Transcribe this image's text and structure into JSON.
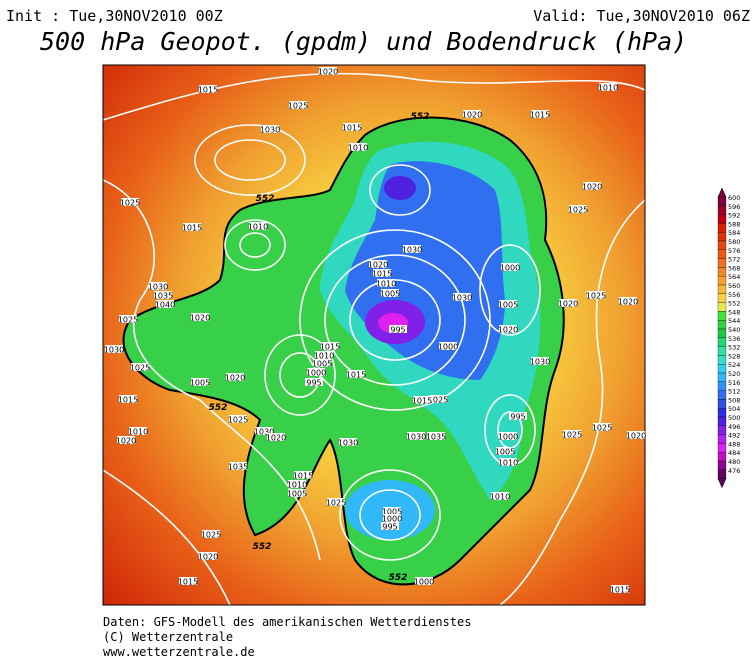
{
  "header": {
    "init": "Init : Tue,30NOV2010 00Z",
    "valid": "Valid: Tue,30NOV2010 06Z",
    "title": "500 hPa Geopot. (gpdm) und Bodendruck (hPa)"
  },
  "colorbar": {
    "values": [
      600,
      596,
      592,
      588,
      584,
      580,
      576,
      572,
      568,
      564,
      560,
      556,
      552,
      548,
      544,
      540,
      536,
      532,
      528,
      524,
      520,
      516,
      512,
      508,
      504,
      500,
      496,
      492,
      488,
      484,
      480,
      476
    ],
    "colors": [
      "#800040",
      "#a00028",
      "#c00010",
      "#d82000",
      "#e03000",
      "#e84810",
      "#f05818",
      "#f07020",
      "#f08828",
      "#f8a030",
      "#f8b838",
      "#f8d040",
      "#e8e850",
      "#40e040",
      "#30d040",
      "#20c840",
      "#20d870",
      "#30e0a0",
      "#30e0c8",
      "#30d0f0",
      "#30b8f8",
      "#3090f8",
      "#3070f0",
      "#3050e8",
      "#3030e0",
      "#5020e0",
      "#8020e8",
      "#b020f0",
      "#e020f0",
      "#c010c0",
      "#900090",
      "#600060"
    ]
  },
  "map": {
    "isobar_labels": [
      "1020",
      "1015",
      "1025",
      "1030",
      "1015",
      "1010",
      "1020",
      "1015",
      "1010",
      "1020",
      "1025",
      "1025",
      "1015",
      "1010",
      "1030",
      "1000",
      "1020",
      "1015",
      "1010",
      "1005",
      "995",
      "1000",
      "1030",
      "1005",
      "1020",
      "1020",
      "1025",
      "1020",
      "1030",
      "1035",
      "1040",
      "1020",
      "1025",
      "1030",
      "1025",
      "1005",
      "1020",
      "1015",
      "1010",
      "1020",
      "1025",
      "1030",
      "1020",
      "1030",
      "1035",
      "1030",
      "1025",
      "995",
      "1000",
      "1005",
      "1010",
      "1025",
      "1025",
      "1020",
      "1035",
      "1015",
      "1010",
      "1005",
      "1025",
      "1005",
      "1000",
      "995",
      "1010",
      "1000",
      "1025",
      "1020",
      "1015",
      "1015",
      "1015",
      "1010",
      "1005",
      "1000",
      "995",
      "1015",
      "1015",
      "1030"
    ],
    "contour_labels": [
      "552",
      "552",
      "552",
      "552",
      "552"
    ]
  },
  "footer": {
    "lines": [
      "Daten: GFS-Modell des amerikanischen Wetterdienstes",
      "(C) Wetterzentrale",
      "www.wetterzentrale.de"
    ]
  }
}
